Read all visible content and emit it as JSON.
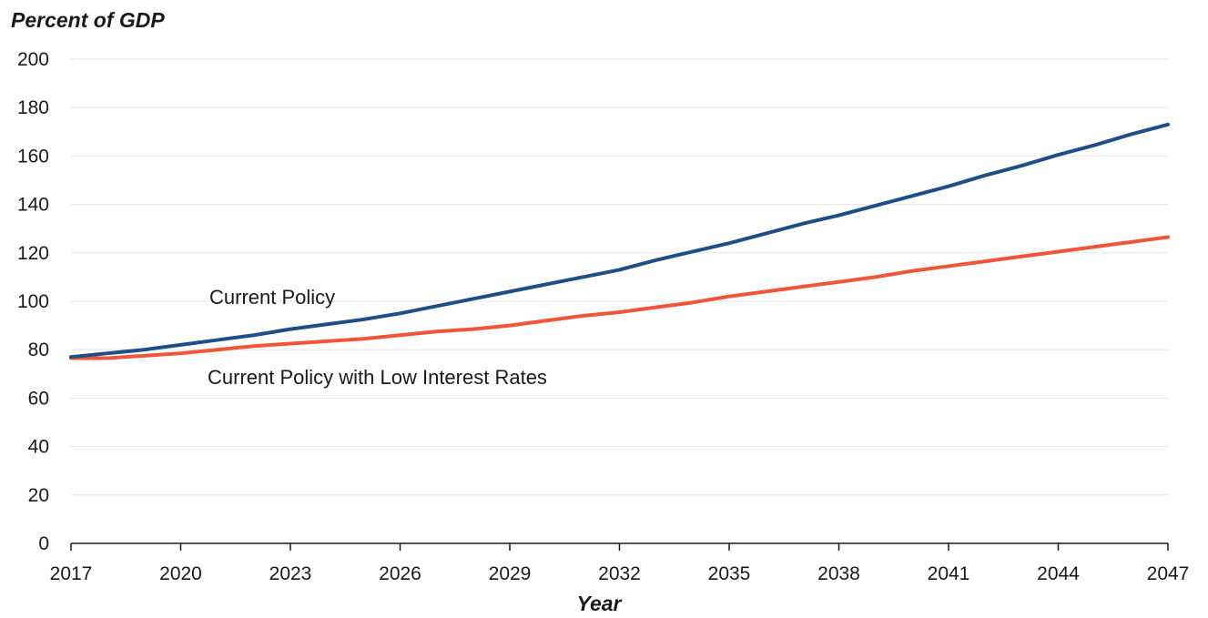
{
  "chart_data": {
    "type": "line",
    "ylabel": "Percent of GDP",
    "xlabel": "Year",
    "xlim": [
      2017,
      2047
    ],
    "ylim": [
      0,
      200
    ],
    "yticks": [
      0,
      20,
      40,
      60,
      80,
      100,
      120,
      140,
      160,
      180,
      200
    ],
    "xticks": [
      2017,
      2020,
      2023,
      2026,
      2029,
      2032,
      2035,
      2038,
      2041,
      2044,
      2047
    ],
    "grid": true,
    "x": [
      2017,
      2018,
      2019,
      2020,
      2021,
      2022,
      2023,
      2024,
      2025,
      2026,
      2027,
      2028,
      2029,
      2030,
      2031,
      2032,
      2033,
      2034,
      2035,
      2036,
      2037,
      2038,
      2039,
      2040,
      2041,
      2042,
      2043,
      2044,
      2045,
      2046,
      2047
    ],
    "series": [
      {
        "name": "Current Policy",
        "color": "#1f4e87",
        "values": [
          77,
          78.5,
          80,
          82,
          84,
          86,
          88.5,
          90.5,
          92.5,
          95,
          98,
          101,
          104,
          107,
          110,
          113,
          117,
          120.5,
          124,
          128,
          132,
          135.5,
          139.5,
          143.5,
          147.5,
          152,
          156,
          160.5,
          164.5,
          169,
          173
        ]
      },
      {
        "name": "Current Policy with Low Interest Rates",
        "color": "#f0553a",
        "values": [
          76.5,
          76.5,
          77.5,
          78.5,
          80,
          81.5,
          82.5,
          83.5,
          84.5,
          86,
          87.5,
          88.5,
          90,
          92,
          94,
          95.5,
          97.5,
          99.5,
          102,
          104,
          106,
          108,
          110,
          112.5,
          114.5,
          116.5,
          118.5,
          120.5,
          122.5,
          124.5,
          126.5
        ]
      }
    ]
  }
}
